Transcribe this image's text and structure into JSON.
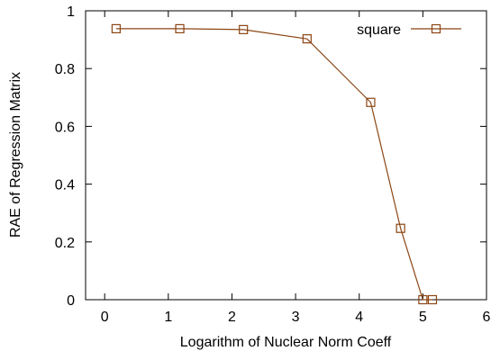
{
  "chart_data": {
    "type": "line",
    "title": "",
    "xlabel": "Logarithm of Nuclear Norm Coeff",
    "ylabel": "RAE of Regression Matrix",
    "xlim": [
      -0.3,
      6
    ],
    "ylim": [
      0,
      1
    ],
    "xticks": [
      "0",
      "1",
      "2",
      "3",
      "4",
      "5",
      "6"
    ],
    "yticks": [
      "0",
      "0.2",
      "0.4",
      "0.6",
      "0.8",
      "1"
    ],
    "legend_position": "top-right",
    "grid": false,
    "series": [
      {
        "name": "square",
        "color": "#8B4513",
        "marker": "square",
        "x": [
          0.18,
          1.18,
          2.18,
          3.18,
          4.18,
          4.65,
          5.0,
          5.15
        ],
        "y": [
          0.938,
          0.938,
          0.935,
          0.903,
          0.683,
          0.247,
          0.0,
          0.0
        ]
      }
    ]
  }
}
